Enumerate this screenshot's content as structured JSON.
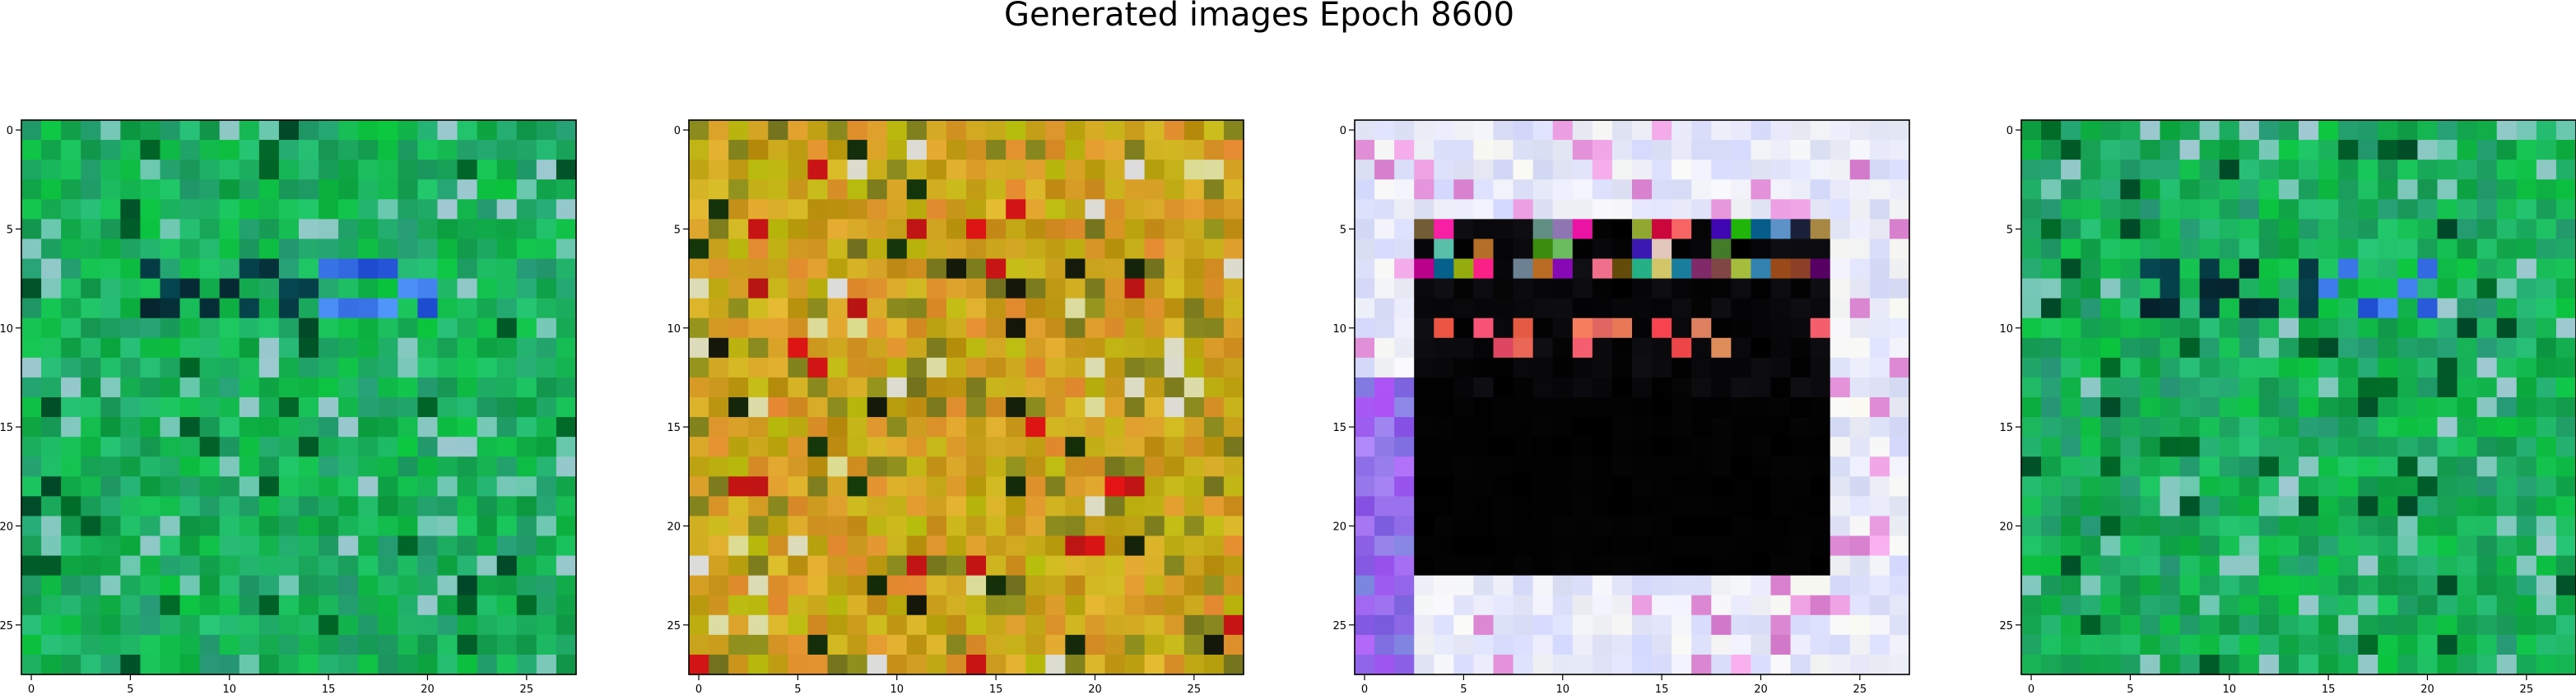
{
  "figure": {
    "title": "Generated images Epoch 8600"
  },
  "chart_data": [
    {
      "type": "heatmap",
      "rendering": "rgb-image",
      "shape": [
        28,
        28
      ],
      "palette": "green",
      "x_ticks": [
        "0",
        "5",
        "10",
        "15",
        "20",
        "25"
      ],
      "y_ticks": [
        "0",
        "5",
        "10",
        "15",
        "20",
        "25"
      ],
      "xlim": [
        -0.5,
        27.5
      ],
      "ylim": [
        27.5,
        -0.5
      ],
      "grid": false
    },
    {
      "type": "heatmap",
      "rendering": "rgb-image",
      "shape": [
        28,
        28
      ],
      "palette": "yellow",
      "x_ticks": [
        "0",
        "5",
        "10",
        "15",
        "20",
        "25"
      ],
      "y_ticks": [
        "0",
        "5",
        "10",
        "15",
        "20",
        "25"
      ],
      "xlim": [
        -0.5,
        27.5
      ],
      "ylim": [
        27.5,
        -0.5
      ],
      "grid": false
    },
    {
      "type": "heatmap",
      "rendering": "rgb-image",
      "shape": [
        28,
        28
      ],
      "palette": "dark-frame",
      "x_ticks": [
        "0",
        "5",
        "10",
        "15",
        "20",
        "25"
      ],
      "y_ticks": [
        "0",
        "5",
        "10",
        "15",
        "20",
        "25"
      ],
      "xlim": [
        -0.5,
        27.5
      ],
      "ylim": [
        27.5,
        -0.5
      ],
      "grid": false
    },
    {
      "type": "heatmap",
      "rendering": "rgb-image",
      "shape": [
        28,
        28
      ],
      "palette": "green",
      "x_ticks": [
        "0",
        "5",
        "10",
        "15",
        "20",
        "25"
      ],
      "y_ticks": [
        "0",
        "5",
        "10",
        "15",
        "20",
        "25"
      ],
      "xlim": [
        -0.5,
        27.5
      ],
      "ylim": [
        27.5,
        -0.5
      ],
      "grid": false
    }
  ]
}
